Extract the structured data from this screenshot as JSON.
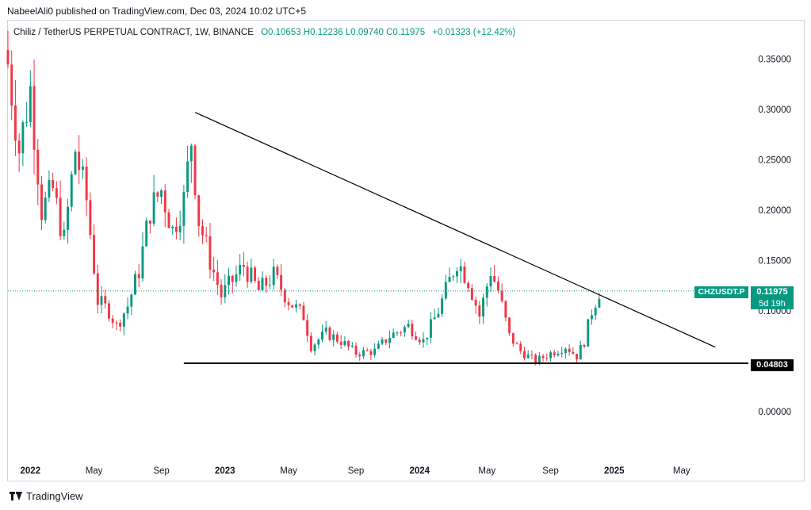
{
  "header": {
    "published_by": "NabeelAli0 published on TradingView.com, Dec 03, 2024 10:02 UTC+5"
  },
  "legend": {
    "title": "Chiliz / TetherUS PERPETUAL CONTRACT, 1W, BINANCE",
    "open": "O0.10653",
    "high": "H0.12236",
    "low": "L0.09740",
    "close": "C0.11975",
    "change": "+0.01323 (+12.42%)"
  },
  "price_tag": {
    "symbol": "CHZUSDT.P",
    "price": "0.11975",
    "countdown": "5d 19h"
  },
  "support_tag": {
    "price": "0.04803"
  },
  "footer": {
    "brand": "TradingView"
  },
  "colors": {
    "up": "#089981",
    "down": "#f23645",
    "trendline": "#000000",
    "support": "#000000",
    "current_price_line": "#089981"
  },
  "chart_data": {
    "type": "candlestick",
    "y_axis_ticks": [
      "0.35000",
      "0.30000",
      "0.25000",
      "0.20000",
      "0.15000",
      "0.10000",
      "0.00000"
    ],
    "ylim": [
      -0.048,
      0.388
    ],
    "x_axis_ticks": [
      {
        "label": "2022",
        "date": "2022-01-03"
      },
      {
        "label": "May",
        "date": "2022-05-02"
      },
      {
        "label": "Sep",
        "date": "2022-09-05"
      },
      {
        "label": "2023",
        "date": "2023-01-02"
      },
      {
        "label": "May",
        "date": "2023-05-01"
      },
      {
        "label": "Sep",
        "date": "2023-09-04"
      },
      {
        "label": "2024",
        "date": "2024-01-01"
      },
      {
        "label": "May",
        "date": "2024-05-06"
      },
      {
        "label": "Sep",
        "date": "2024-09-02"
      },
      {
        "label": "2025",
        "date": "2024-12-30"
      },
      {
        "label": "May",
        "date": "2025-05-05"
      }
    ],
    "x_range": [
      "2021-11-22",
      "2025-09-01"
    ],
    "current_price": 0.11975,
    "support_level": 0.04803,
    "descending_trendline": [
      {
        "date": "2022-11-07",
        "price": 0.297
      },
      {
        "date": "2025-07-07",
        "price": 0.064
      }
    ],
    "weekly_path_close": [
      [
        "2021-11-22",
        0.345
      ],
      [
        "2021-12-13",
        0.26
      ],
      [
        "2022-01-03",
        0.32
      ],
      [
        "2022-01-24",
        0.2
      ],
      [
        "2022-02-14",
        0.22
      ],
      [
        "2022-03-07",
        0.17
      ],
      [
        "2022-03-28",
        0.26
      ],
      [
        "2022-04-18",
        0.21
      ],
      [
        "2022-05-09",
        0.11
      ],
      [
        "2022-05-30",
        0.1
      ],
      [
        "2022-06-13",
        0.085
      ],
      [
        "2022-07-04",
        0.105
      ],
      [
        "2022-07-25",
        0.14
      ],
      [
        "2022-08-15",
        0.2
      ],
      [
        "2022-09-05",
        0.22
      ],
      [
        "2022-09-26",
        0.18
      ],
      [
        "2022-10-17",
        0.21
      ],
      [
        "2022-10-31",
        0.27
      ],
      [
        "2022-11-14",
        0.19
      ],
      [
        "2022-12-05",
        0.15
      ],
      [
        "2022-12-26",
        0.115
      ],
      [
        "2023-01-16",
        0.13
      ],
      [
        "2023-02-06",
        0.145
      ],
      [
        "2023-03-06",
        0.12
      ],
      [
        "2023-04-03",
        0.135
      ],
      [
        "2023-05-01",
        0.11
      ],
      [
        "2023-05-29",
        0.095
      ],
      [
        "2023-06-12",
        0.065
      ],
      [
        "2023-07-10",
        0.078
      ],
      [
        "2023-08-07",
        0.07
      ],
      [
        "2023-09-04",
        0.058
      ],
      [
        "2023-10-09",
        0.06
      ],
      [
        "2023-11-06",
        0.075
      ],
      [
        "2023-12-11",
        0.085
      ],
      [
        "2024-01-08",
        0.07
      ],
      [
        "2024-02-05",
        0.1
      ],
      [
        "2024-03-11",
        0.15
      ],
      [
        "2024-04-01",
        0.13
      ],
      [
        "2024-04-22",
        0.095
      ],
      [
        "2024-05-13",
        0.14
      ],
      [
        "2024-05-27",
        0.12
      ],
      [
        "2024-06-17",
        0.075
      ],
      [
        "2024-07-08",
        0.06
      ],
      [
        "2024-08-05",
        0.05
      ],
      [
        "2024-09-02",
        0.058
      ],
      [
        "2024-09-30",
        0.065
      ],
      [
        "2024-10-21",
        0.055
      ],
      [
        "2024-11-04",
        0.07
      ],
      [
        "2024-11-18",
        0.1
      ],
      [
        "2024-12-02",
        0.11975
      ]
    ]
  }
}
